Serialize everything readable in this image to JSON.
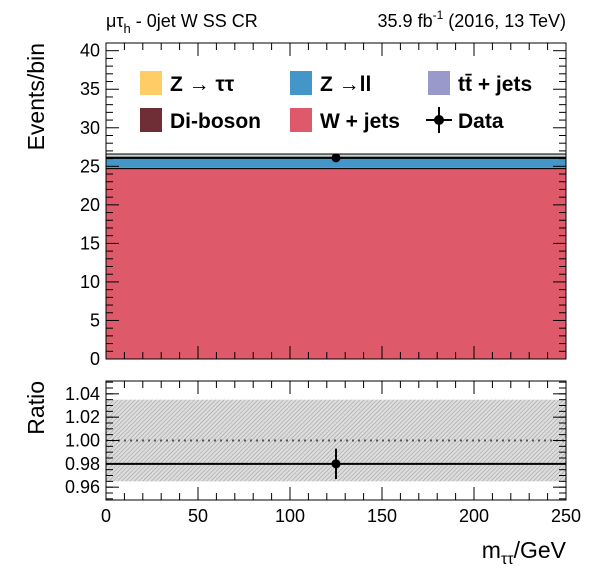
{
  "header": {
    "channel_prefix": "μτ",
    "channel_sub": "h",
    "channel_suffix": " - 0jet W SS CR",
    "lumi_value": "35.9 fb",
    "lumi_exp": "-1",
    "lumi_suffix": " (2016, 13 TeV)"
  },
  "colors": {
    "ztautau": "#ffcc66",
    "zll": "#4496c8",
    "ttbar": "#9999cc",
    "diboson": "#6f2d35",
    "wjets": "#de5a6a",
    "data": "#000000",
    "band": "#c8c8c8"
  },
  "chart_data": [
    {
      "type": "bar",
      "stacked": true,
      "ylabel": "Events/bin",
      "xlim": [
        0,
        250
      ],
      "ylim": [
        0,
        41
      ],
      "yticks": [
        0,
        5,
        10,
        15,
        20,
        25,
        30,
        35,
        40
      ],
      "bin_edges": [
        0,
        250
      ],
      "series": [
        {
          "name": "W + jets",
          "key": "wjets",
          "values": [
            24.7
          ]
        },
        {
          "name": "Di-boson",
          "key": "diboson",
          "values": [
            0.1
          ]
        },
        {
          "name": "Z → ll",
          "key": "zll",
          "values": [
            1.5
          ]
        },
        {
          "name": "Z → ττ",
          "key": "ztautau",
          "values": [
            0.2
          ]
        },
        {
          "name": "tt̄ + jets",
          "key": "ttbar",
          "values": [
            0.1
          ]
        }
      ],
      "data": {
        "name": "Data",
        "x": [
          125
        ],
        "y": [
          26.1
        ]
      },
      "legend": {
        "placement": "top",
        "entries": [
          {
            "key": "ztautau",
            "label_parts": [
              "Z ",
              "→",
              " ττ"
            ],
            "marker": "box"
          },
          {
            "key": "zll",
            "label_parts": [
              "Z ",
              "→",
              "ll"
            ],
            "marker": "box"
          },
          {
            "key": "ttbar",
            "label_parts": [
              "t",
              "t̄",
              " + jets"
            ],
            "marker": "box"
          },
          {
            "key": "diboson",
            "label_parts": [
              "Di-boson"
            ],
            "marker": "box"
          },
          {
            "key": "wjets",
            "label_parts": [
              "W + jets"
            ],
            "marker": "box"
          },
          {
            "key": "data",
            "label_parts": [
              "Data"
            ],
            "marker": "point"
          }
        ]
      }
    },
    {
      "type": "scatter",
      "ylabel": "Ratio",
      "xlabel_main": "m",
      "xlabel_sub": "ττ",
      "xlabel_unit": "/GeV",
      "xlim": [
        0,
        250
      ],
      "ylim": [
        0.949,
        1.051
      ],
      "xticks": [
        0,
        50,
        100,
        150,
        200,
        250
      ],
      "yticks": [
        "0.96",
        "0.98",
        "1.00",
        "1.02",
        "1.04"
      ],
      "reference_line": 1.0,
      "band": [
        0.965,
        1.035
      ],
      "central_line": 0.98,
      "points": [
        {
          "x": 125,
          "y": 0.98,
          "yerr": 0.013
        }
      ]
    }
  ]
}
